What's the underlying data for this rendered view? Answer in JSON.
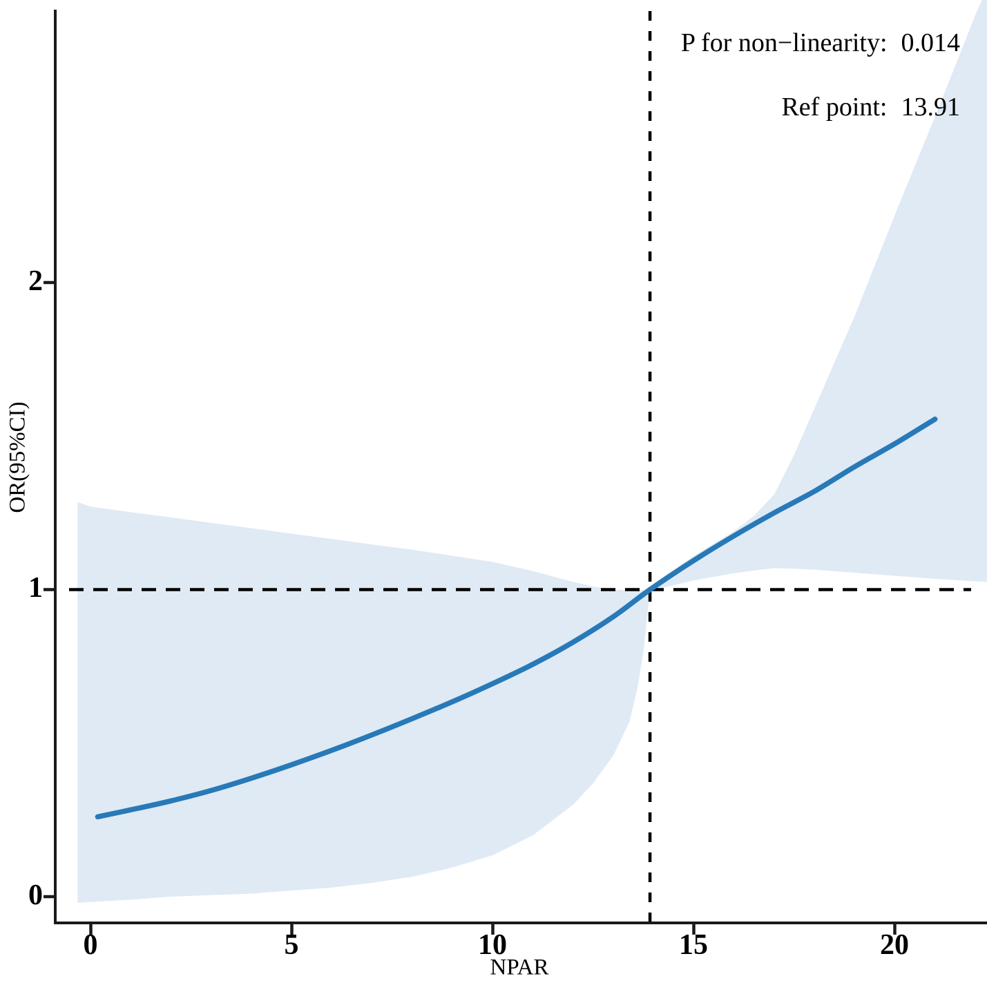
{
  "chart_data": {
    "type": "line",
    "title": "",
    "xlabel": "NPAR",
    "ylabel": "OR(95%CI)",
    "legend_position": "none",
    "grid": false,
    "x_ticks": [
      0,
      5,
      10,
      15,
      20
    ],
    "y_ticks": [
      0,
      1,
      2
    ],
    "xlim": [
      -0.9,
      22.3
    ],
    "ylim": [
      -0.09,
      2.95
    ],
    "ref_point": 13.91,
    "reference_or": 1,
    "annotations": [
      {
        "label": "P for non−linearity:",
        "value": "0.014"
      },
      {
        "label": "Ref point:",
        "value": "13.91"
      }
    ],
    "series": [
      {
        "name": "OR point estimate (restricted cubic spline)",
        "x": [
          0.17,
          1,
          2,
          3,
          4,
          5,
          6,
          7,
          8,
          9,
          10,
          11,
          12,
          13,
          13.91,
          15,
          16,
          17,
          18,
          19,
          20,
          21
        ],
        "y": [
          0.26,
          0.283,
          0.312,
          0.346,
          0.386,
          0.43,
          0.477,
          0.527,
          0.58,
          0.635,
          0.694,
          0.757,
          0.829,
          0.912,
          1.0,
          1.095,
          1.175,
          1.25,
          1.32,
          1.4,
          1.475,
          1.555
        ]
      }
    ],
    "ci_band": {
      "name": "95% confidence interval",
      "x": [
        -0.33,
        0,
        1,
        2,
        3,
        4,
        5,
        6,
        7,
        8,
        9,
        10,
        11,
        12,
        12.5,
        13,
        13.4,
        13.6,
        13.75,
        13.91,
        14.3,
        15,
        16,
        16.5,
        17,
        17.5,
        18,
        19,
        20,
        21,
        22,
        22.3
      ],
      "upper": [
        1.285,
        1.27,
        1.252,
        1.235,
        1.217,
        1.2,
        1.182,
        1.165,
        1.147,
        1.13,
        1.11,
        1.09,
        1.06,
        1.025,
        1.01,
        1.0,
        0.997,
        0.997,
        0.998,
        1.0,
        1.045,
        1.11,
        1.19,
        1.24,
        1.31,
        1.44,
        1.59,
        1.89,
        2.22,
        2.54,
        2.87,
        2.96
      ],
      "lower": [
        -0.02,
        -0.017,
        -0.01,
        0.0,
        0.005,
        0.01,
        0.02,
        0.03,
        0.045,
        0.065,
        0.095,
        0.135,
        0.2,
        0.3,
        0.37,
        0.46,
        0.57,
        0.68,
        0.8,
        1.0,
        1.008,
        1.03,
        1.053,
        1.062,
        1.07,
        1.068,
        1.065,
        1.055,
        1.045,
        1.035,
        1.027,
        1.025
      ]
    },
    "colors": {
      "curve": "#2879b8",
      "band": "#dfeaf4",
      "dashed_line": "#000000",
      "axis": "#1a1a1a",
      "text": "#000000"
    }
  }
}
